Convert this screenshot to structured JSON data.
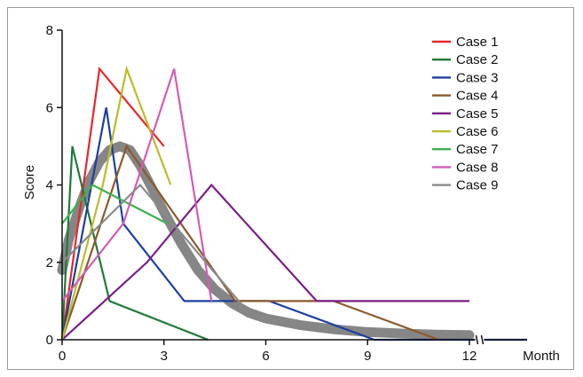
{
  "chart_data": {
    "type": "line",
    "xlabel": "Month",
    "ylabel": "Score",
    "xlim": [
      0,
      13.7
    ],
    "ylim": [
      0,
      8
    ],
    "x_ticks": [
      0,
      3,
      6,
      9,
      12
    ],
    "y_ticks": [
      0,
      2,
      4,
      6,
      8
    ],
    "axis_break_x": 12.3,
    "grid": false,
    "legend_position": "top-right",
    "series": [
      {
        "name": "Case 1",
        "color": "#e8262a",
        "x": [
          0,
          1.1,
          3.0
        ],
        "y": [
          0,
          7,
          5
        ]
      },
      {
        "name": "Case 2",
        "color": "#1f7a3a",
        "x": [
          0,
          0.3,
          1.4,
          4.3
        ],
        "y": [
          0,
          5,
          1,
          0
        ]
      },
      {
        "name": "Case 3",
        "color": "#1d3fa0",
        "x": [
          0,
          1.3,
          1.8,
          3.6,
          6.1,
          9.2,
          12.2,
          13.7
        ],
        "y": [
          0,
          6,
          3,
          1,
          1,
          0,
          0,
          0
        ]
      },
      {
        "name": "Case 4",
        "color": "#8b5a2b",
        "x": [
          0,
          1.9,
          5.1,
          8.0,
          11.1
        ],
        "y": [
          0,
          5,
          1,
          1,
          0
        ]
      },
      {
        "name": "Case 5",
        "color": "#7a1f86",
        "x": [
          0,
          2.5,
          4.4,
          7.5,
          12.0
        ],
        "y": [
          0,
          2,
          4,
          1,
          1
        ]
      },
      {
        "name": "Case 6",
        "color": "#bcbc2a",
        "x": [
          0,
          1.2,
          1.9,
          3.2
        ],
        "y": [
          0,
          4,
          7,
          4
        ]
      },
      {
        "name": "Case 7",
        "color": "#3fb04f",
        "x": [
          0,
          0.9,
          3.1
        ],
        "y": [
          3,
          4,
          3
        ]
      },
      {
        "name": "Case 8",
        "color": "#d45bb5",
        "x": [
          0,
          1.8,
          3.3,
          4.4
        ],
        "y": [
          1,
          3,
          7,
          1
        ]
      },
      {
        "name": "Case 9",
        "color": "#8a8a8a",
        "x": [
          0,
          2.3,
          5.3
        ],
        "y": [
          2,
          4,
          0.9
        ]
      }
    ],
    "trend": {
      "color": "#7f7f7f",
      "x": [
        0,
        0.2,
        0.5,
        0.8,
        1.1,
        1.4,
        1.7,
        2.0,
        2.3,
        2.6,
        3.0,
        3.5,
        4.0,
        4.5,
        5.0,
        5.5,
        6.0,
        7.0,
        8.0,
        9.0,
        10.0,
        11.0,
        12.0
      ],
      "y": [
        1.8,
        2.6,
        3.4,
        4.1,
        4.6,
        4.9,
        5.0,
        4.9,
        4.5,
        4.0,
        3.3,
        2.5,
        1.8,
        1.3,
        0.95,
        0.7,
        0.55,
        0.38,
        0.27,
        0.2,
        0.16,
        0.13,
        0.12
      ]
    }
  }
}
